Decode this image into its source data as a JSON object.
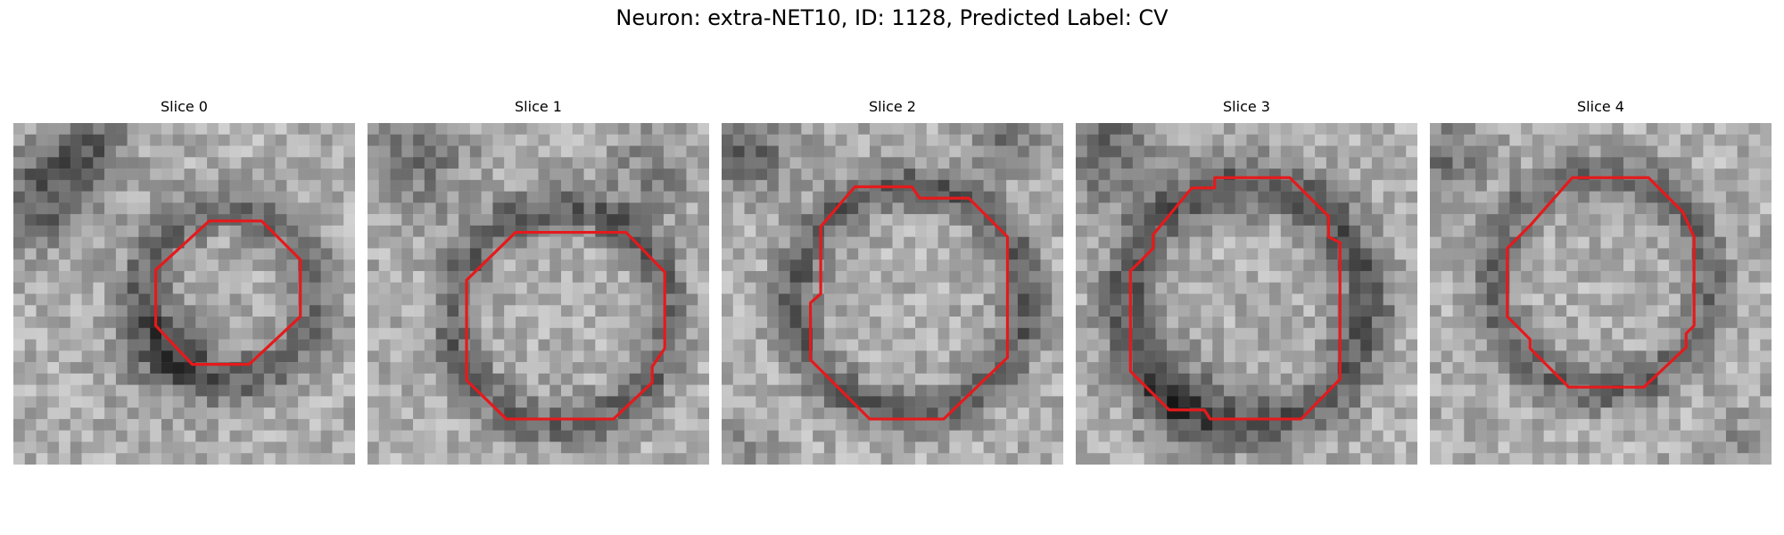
{
  "figure": {
    "title": "Neuron: extra-NET10, ID: 1128, Predicted Label: CV"
  },
  "panels": [
    {
      "label": "Slice 0"
    },
    {
      "label": "Slice 1"
    },
    {
      "label": "Slice 2"
    },
    {
      "label": "Slice 3"
    },
    {
      "label": "Slice 4"
    }
  ],
  "colors": {
    "contour": "#e41a1c",
    "background": "#ffffff"
  }
}
